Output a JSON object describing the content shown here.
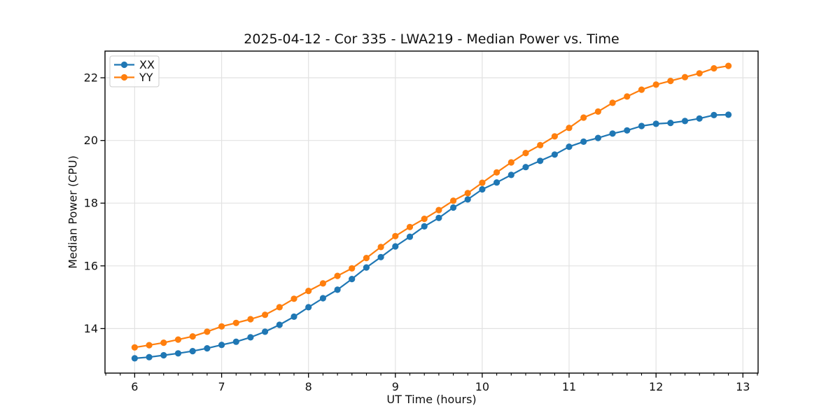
{
  "figure": {
    "background_color": "#ffffff",
    "title": "2025-04-12 - Cor 335 - LWA219 - Median Power vs. Time"
  },
  "chart_data": {
    "type": "line",
    "title": "2025-04-12 - Cor 335 - LWA219 - Median Power vs. Time",
    "xlabel": "UT Time (hours)",
    "ylabel": "Median Power (CPU)",
    "xlim": [
      5.658,
      13.175
    ],
    "ylim": [
      12.58,
      22.85
    ],
    "x_major_ticks": [
      6,
      7,
      8,
      9,
      10,
      11,
      12,
      13
    ],
    "x_minor_tick_step": 0.16667,
    "y_major_ticks": [
      14,
      16,
      18,
      20,
      22
    ],
    "grid": true,
    "grid_color": "#e2e2e2",
    "spine_color": "#000000",
    "legend_position": "upper-left",
    "marker": "circle",
    "x": [
      6.0,
      6.1667,
      6.3333,
      6.5,
      6.6667,
      6.8333,
      7.0,
      7.1667,
      7.3333,
      7.5,
      7.6667,
      7.8333,
      8.0,
      8.1667,
      8.3333,
      8.5,
      8.6667,
      8.8333,
      9.0,
      9.1667,
      9.3333,
      9.5,
      9.6667,
      9.8333,
      10.0,
      10.1667,
      10.3333,
      10.5,
      10.6667,
      10.8333,
      11.0,
      11.1667,
      11.3333,
      11.5,
      11.6667,
      11.8333,
      12.0,
      12.1667,
      12.3333,
      12.5,
      12.6667,
      12.8333
    ],
    "series": [
      {
        "name": "XX",
        "color": "#1f77b4",
        "values": [
          13.05,
          13.09,
          13.15,
          13.21,
          13.28,
          13.37,
          13.48,
          13.58,
          13.72,
          13.9,
          14.12,
          14.38,
          14.68,
          14.97,
          15.24,
          15.58,
          15.95,
          16.28,
          16.62,
          16.93,
          17.26,
          17.53,
          17.86,
          18.12,
          18.44,
          18.66,
          18.9,
          19.15,
          19.35,
          19.55,
          19.8,
          19.96,
          20.08,
          20.22,
          20.32,
          20.46,
          20.53,
          20.56,
          20.62,
          20.7,
          20.81,
          20.82
        ]
      },
      {
        "name": "YY",
        "color": "#ff7f0e",
        "values": [
          13.4,
          13.47,
          13.55,
          13.65,
          13.75,
          13.9,
          14.07,
          14.18,
          14.3,
          14.44,
          14.68,
          14.95,
          15.2,
          15.44,
          15.68,
          15.92,
          16.25,
          16.6,
          16.95,
          17.24,
          17.5,
          17.78,
          18.08,
          18.32,
          18.65,
          18.98,
          19.3,
          19.6,
          19.85,
          20.13,
          20.4,
          20.73,
          20.92,
          21.2,
          21.4,
          21.62,
          21.78,
          21.9,
          22.02,
          22.14,
          22.3,
          22.38
        ]
      }
    ]
  }
}
